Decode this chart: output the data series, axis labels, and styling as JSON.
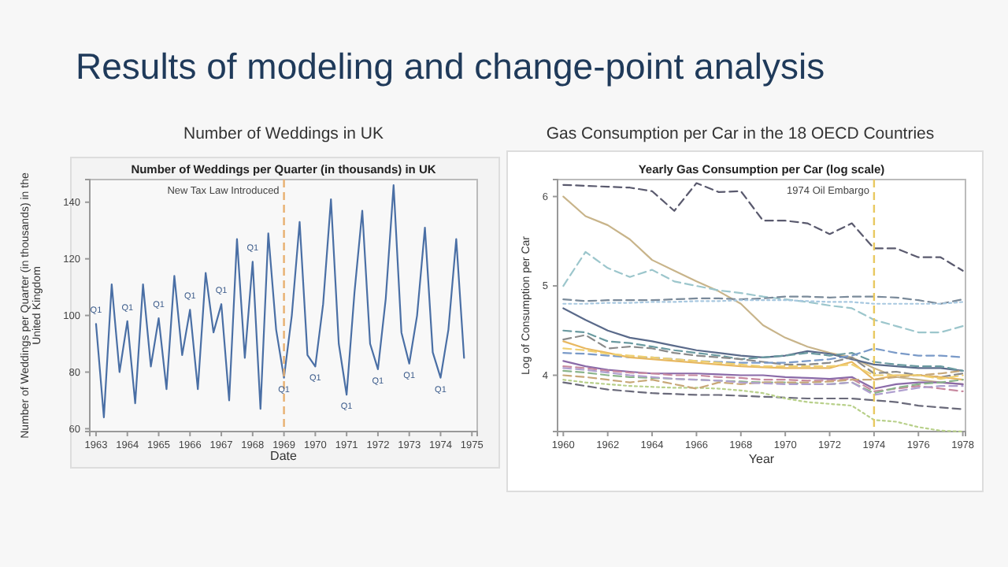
{
  "chart_data": [
    {
      "type": "line",
      "title": "Number of Weddings in UK",
      "subtitle": "Number of Weddings per Quarter (in thousands) in UK",
      "xlabel": "Date",
      "ylabel": "Number of Weddings per Quarter (in thousands) in the United Kingdom",
      "annotations": [
        "Results of modeling and change-point analysis",
        {
          "text": "Q1",
          "x": 1963,
          "y": 97
        },
        {
          "text": "Q1",
          "x": 1964,
          "y": 98
        },
        {
          "text": "Q1",
          "x": 1965,
          "y": 99
        },
        {
          "text": "Q1",
          "x": 1966,
          "y": 102
        },
        {
          "text": "Q1",
          "x": 1967,
          "y": 104
        },
        {
          "text": "Q1",
          "x": 1968,
          "y": 119
        },
        {
          "text": "Q1",
          "x": 1969,
          "y": 78
        },
        {
          "text": "Q1",
          "x": 1970,
          "y": 82
        },
        {
          "text": "Q1",
          "x": 1971,
          "y": 72
        },
        {
          "text": "Q1",
          "x": 1972,
          "y": 81
        },
        {
          "text": "Q1",
          "x": 1973,
          "y": 83
        },
        {
          "text": "Q1",
          "x": 1974,
          "y": 78
        }
      ],
      "x": [
        1963,
        1963.25,
        1963.5,
        1963.75,
        1964,
        1964.25,
        1964.5,
        1964.75,
        1965,
        1965.25,
        1965.5,
        1965.75,
        1966,
        1966.25,
        1966.5,
        1966.75,
        1967,
        1967.25,
        1967.5,
        1967.75,
        1968,
        1968.25,
        1968.5,
        1968.75,
        1969,
        1969.25,
        1969.5,
        1969.75,
        1970,
        1970.25,
        1970.5,
        1970.75,
        1971,
        1971.25,
        1971.5,
        1971.75,
        1972,
        1972.25,
        1972.5,
        1972.75,
        1973,
        1973.25,
        1973.5,
        1973.75,
        1974,
        1974.25,
        1974.5,
        1974.75
      ],
      "series": [
        {
          "color": "#4a6fa5",
          "values": [
            97,
            64,
            111,
            80,
            98,
            69,
            111,
            82,
            99,
            74,
            114,
            86,
            102,
            74,
            115,
            94,
            104,
            70,
            127,
            85,
            119,
            67,
            129,
            95,
            78,
            100,
            133,
            86,
            82,
            104,
            141,
            90,
            72,
            108,
            137,
            90,
            81,
            106,
            146,
            94,
            83,
            100,
            131,
            87,
            78,
            95,
            127,
            85
          ]
        }
      ],
      "xlim": [
        1962.8,
        1975.17
      ],
      "xticks": [
        1963,
        1964,
        1965,
        1966,
        1967,
        1968,
        1969,
        1970,
        1971,
        1972,
        1973,
        1974,
        1975
      ],
      "ylim": [
        59,
        148
      ],
      "yticks": [
        60,
        80,
        100,
        120,
        140
      ],
      "ref_lines": [
        {
          "axis": "x",
          "value": 1969,
          "label": "New Tax Law Introduced",
          "color": "#e8b070",
          "line_style": "dashed"
        }
      ],
      "tick_labels": true
    },
    {
      "type": "line",
      "title": "Gas Consumption per Car in the 18 OECD Countries",
      "subtitle": "Yearly Gas Consumption per Car (log scale)",
      "xlabel": "Year",
      "ylabel": "Log of Consumption per Car",
      "x": [
        1960,
        1961,
        1962,
        1963,
        1964,
        1965,
        1966,
        1967,
        1968,
        1969,
        1970,
        1971,
        1972,
        1973,
        1974,
        1975,
        1976,
        1977,
        1978
      ],
      "series": [
        {
          "color": "#5a5a6e",
          "line_style": "dashed",
          "values": [
            6.13,
            6.12,
            6.11,
            6.1,
            6.06,
            5.84,
            6.15,
            6.05,
            6.06,
            5.73,
            5.73,
            5.7,
            5.58,
            5.7,
            5.42,
            5.42,
            5.32,
            5.32,
            5.17
          ]
        },
        {
          "color": "#c8b48a",
          "line_style": "solid",
          "values": [
            6.0,
            5.78,
            5.68,
            5.52,
            5.29,
            5.17,
            5.05,
            4.94,
            4.8,
            4.56,
            4.42,
            4.32,
            4.25,
            4.2,
            4.08,
            3.98,
            3.95,
            3.92,
            3.9
          ]
        },
        {
          "color": "#9cc6cc",
          "line_style": "dashed",
          "values": [
            5.0,
            5.38,
            5.2,
            5.1,
            5.18,
            5.05,
            5.0,
            4.95,
            4.92,
            4.88,
            4.85,
            4.82,
            4.78,
            4.75,
            4.62,
            4.55,
            4.48,
            4.48,
            4.55
          ]
        },
        {
          "color": "#7a8a9a",
          "line_style": "dashed",
          "values": [
            4.85,
            4.83,
            4.84,
            4.84,
            4.84,
            4.85,
            4.86,
            4.86,
            4.85,
            4.86,
            4.88,
            4.88,
            4.87,
            4.88,
            4.88,
            4.87,
            4.84,
            4.8,
            4.85
          ]
        },
        {
          "color": "#a8c8e0",
          "line_style": "dotted",
          "values": [
            4.8,
            4.8,
            4.81,
            4.81,
            4.82,
            4.82,
            4.83,
            4.83,
            4.84,
            4.84,
            4.84,
            4.83,
            4.82,
            4.82,
            4.8,
            4.8,
            4.8,
            4.8,
            4.82
          ]
        },
        {
          "color": "#5a6a8a",
          "line_style": "solid",
          "values": [
            4.75,
            4.62,
            4.5,
            4.42,
            4.38,
            4.33,
            4.28,
            4.25,
            4.22,
            4.2,
            4.22,
            4.27,
            4.24,
            4.18,
            4.12,
            4.1,
            4.08,
            4.08,
            4.05
          ]
        },
        {
          "color": "#6a9aa0",
          "line_style": "dashed",
          "values": [
            4.5,
            4.48,
            4.38,
            4.36,
            4.32,
            4.28,
            4.25,
            4.22,
            4.18,
            4.2,
            4.22,
            4.25,
            4.22,
            4.25,
            4.15,
            4.12,
            4.1,
            4.1,
            4.05
          ]
        },
        {
          "color": "#8a8a8a",
          "line_style": "dashed",
          "values": [
            4.4,
            4.45,
            4.3,
            4.32,
            4.3,
            4.25,
            4.22,
            4.2,
            4.18,
            4.15,
            4.12,
            4.12,
            4.14,
            4.2,
            4.02,
            4.04,
            4.0,
            3.98,
            4.02
          ]
        },
        {
          "color": "#7a9ac8",
          "line_style": "dashed",
          "values": [
            4.25,
            4.24,
            4.22,
            4.2,
            4.2,
            4.18,
            4.16,
            4.15,
            4.14,
            4.14,
            4.14,
            4.16,
            4.18,
            4.22,
            4.3,
            4.25,
            4.22,
            4.22,
            4.2
          ]
        },
        {
          "color": "#e8b860",
          "line_style": "solid",
          "values": [
            4.38,
            4.3,
            4.25,
            4.2,
            4.18,
            4.16,
            4.14,
            4.12,
            4.1,
            4.09,
            4.08,
            4.08,
            4.08,
            4.15,
            3.95,
            4.0,
            4.0,
            3.98,
            3.95
          ]
        },
        {
          "color": "#8a6aa8",
          "line_style": "solid",
          "values": [
            4.16,
            4.1,
            4.06,
            4.04,
            4.02,
            4.02,
            4.02,
            4.01,
            4.0,
            4.0,
            3.98,
            3.97,
            3.96,
            3.98,
            3.85,
            3.9,
            3.92,
            3.92,
            3.9
          ]
        },
        {
          "color": "#c88aa0",
          "line_style": "dashed",
          "values": [
            4.1,
            4.08,
            4.05,
            4.03,
            4.02,
            4.0,
            4.0,
            3.98,
            3.97,
            3.95,
            3.95,
            3.94,
            3.94,
            3.96,
            3.82,
            3.85,
            3.88,
            3.85,
            3.82
          ]
        },
        {
          "color": "#8ab48a",
          "line_style": "dashed",
          "values": [
            4.05,
            4.03,
            4.0,
            3.98,
            3.97,
            3.96,
            3.95,
            3.94,
            3.93,
            3.92,
            3.92,
            3.9,
            3.9,
            3.92,
            3.8,
            3.86,
            3.9,
            3.92,
            3.95
          ]
        },
        {
          "color": "#6a6a7a",
          "line_style": "dashed",
          "values": [
            3.92,
            3.88,
            3.84,
            3.82,
            3.8,
            3.79,
            3.78,
            3.78,
            3.77,
            3.76,
            3.75,
            3.74,
            3.74,
            3.74,
            3.72,
            3.7,
            3.66,
            3.64,
            3.62
          ]
        },
        {
          "color": "#b8d08a",
          "line_style": "dotted",
          "values": [
            3.95,
            3.92,
            3.9,
            3.88,
            3.87,
            3.86,
            3.86,
            3.85,
            3.83,
            3.8,
            3.74,
            3.7,
            3.68,
            3.66,
            3.5,
            3.48,
            3.42,
            3.38,
            3.37
          ]
        },
        {
          "color": "#c8a878",
          "line_style": "dashed",
          "values": [
            4.0,
            3.98,
            3.95,
            3.92,
            3.95,
            3.9,
            3.85,
            3.92,
            3.9,
            3.92,
            3.92,
            3.92,
            3.93,
            3.95,
            3.95,
            3.98,
            4.0,
            4.02,
            4.05
          ]
        },
        {
          "color": "#b0a0d0",
          "line_style": "dashed",
          "values": [
            4.08,
            4.06,
            4.03,
            4.0,
            3.98,
            3.96,
            3.95,
            3.94,
            3.92,
            3.91,
            3.9,
            3.9,
            3.9,
            3.92,
            3.78,
            3.82,
            3.86,
            3.88,
            3.88
          ]
        },
        {
          "color": "#f0d070",
          "line_style": "dashed",
          "values": [
            4.3,
            4.28,
            4.24,
            4.22,
            4.2,
            4.18,
            4.16,
            4.14,
            4.12,
            4.1,
            4.1,
            4.1,
            4.1,
            4.12,
            4.0,
            4.0,
            4.0,
            3.96,
            4.0
          ]
        }
      ],
      "xlim": [
        1959.74,
        1978.12
      ],
      "xticks": [
        1960,
        1962,
        1964,
        1966,
        1968,
        1970,
        1972,
        1974,
        1976,
        1978
      ],
      "ylim": [
        3.37,
        6.19
      ],
      "yticks": [
        4,
        5,
        6
      ],
      "ref_lines": [
        {
          "axis": "x",
          "value": 1974,
          "label": "1974 Oil Embargo",
          "color": "#e8c860",
          "line_style": "dashed"
        }
      ],
      "tick_labels": true
    }
  ]
}
